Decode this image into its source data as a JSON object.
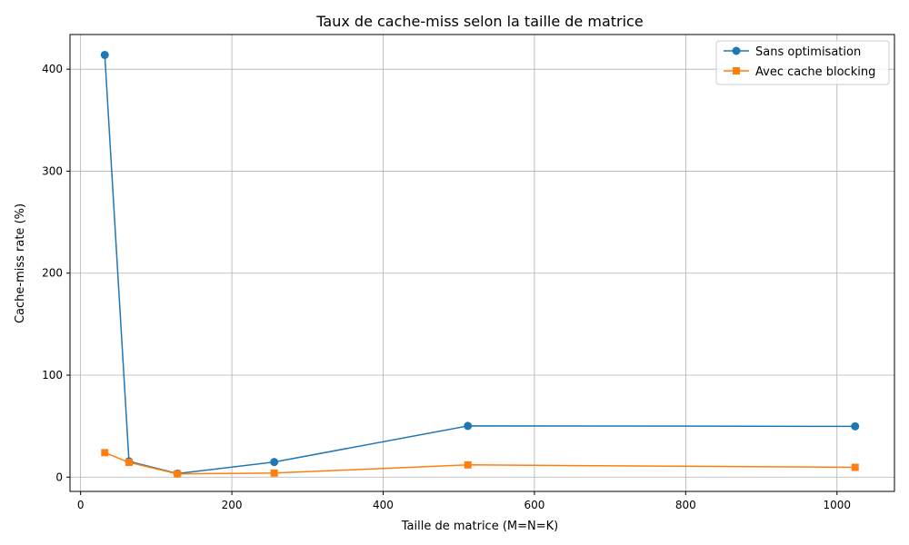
{
  "chart_data": {
    "type": "line",
    "title": "Taux de cache-miss selon la taille de matrice",
    "xlabel": "Taille de matrice (M=N=K)",
    "ylabel": "Cache-miss rate (%)",
    "xlim": [
      -14,
      1076
    ],
    "ylim": [
      -14,
      434
    ],
    "xticks": [
      0,
      200,
      400,
      600,
      800,
      1000
    ],
    "yticks": [
      0,
      100,
      200,
      300,
      400
    ],
    "grid": true,
    "legend_position": "top-right",
    "series": [
      {
        "name": "Sans optimisation",
        "color": "#1f77b4",
        "marker": "circle",
        "x": [
          32,
          64,
          128,
          256,
          512,
          1024
        ],
        "y": [
          414,
          15.5,
          3.5,
          14.8,
          50.2,
          49.8
        ]
      },
      {
        "name": "Avec cache blocking",
        "color": "#ff7f0e",
        "marker": "square",
        "x": [
          32,
          64,
          128,
          256,
          512,
          1024
        ],
        "y": [
          24,
          14.5,
          3.2,
          4.0,
          12.0,
          9.6
        ]
      }
    ]
  }
}
